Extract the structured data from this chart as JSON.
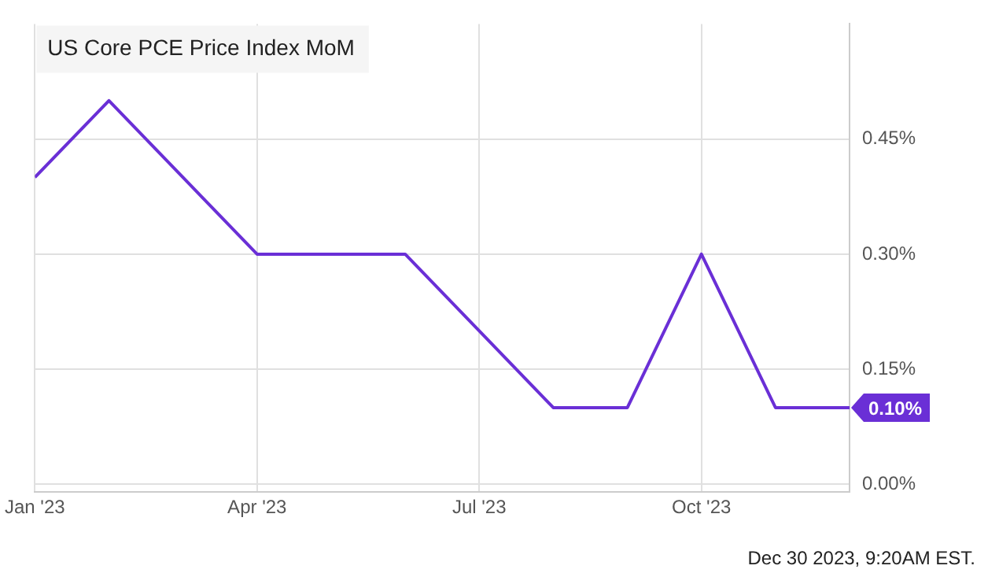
{
  "chart_data": {
    "type": "line",
    "title": "US Core PCE Price Index MoM",
    "x": [
      "2023-01",
      "2023-02",
      "2023-03",
      "2023-04",
      "2023-05",
      "2023-06",
      "2023-07",
      "2023-08",
      "2023-09",
      "2023-10",
      "2023-11",
      "2023-12"
    ],
    "series": [
      {
        "color": "#6a2fd6",
        "values": [
          0.4,
          0.5,
          0.4,
          0.3,
          0.3,
          0.3,
          0.2,
          0.1,
          0.1,
          0.3,
          0.1,
          0.1
        ],
        "value_labels": [
          null,
          null,
          null,
          null,
          null,
          null,
          null,
          null,
          null,
          null,
          null,
          "0.10%"
        ]
      }
    ],
    "xlim": [
      "2023-01",
      "2023-12"
    ],
    "xticks": [
      {
        "value": "2023-01",
        "label": "Jan '23"
      },
      {
        "value": "2023-04",
        "label": "Apr '23"
      },
      {
        "value": "2023-07",
        "label": "Jul '23"
      },
      {
        "value": "2023-10",
        "label": "Oct '23"
      }
    ],
    "ylim": [
      -0.01,
      0.6
    ],
    "yticks": [
      {
        "value": 0,
        "label": "0.00%"
      },
      {
        "value": 0.15,
        "label": "0.15%"
      },
      {
        "value": 0.3,
        "label": "0.30%"
      },
      {
        "value": 0.45,
        "label": "0.45%"
      }
    ],
    "grid": true,
    "legend": false,
    "marker": "none",
    "line_style": "solid",
    "annotations": [
      "Dec 30 2023, 9:20AM EST."
    ]
  }
}
